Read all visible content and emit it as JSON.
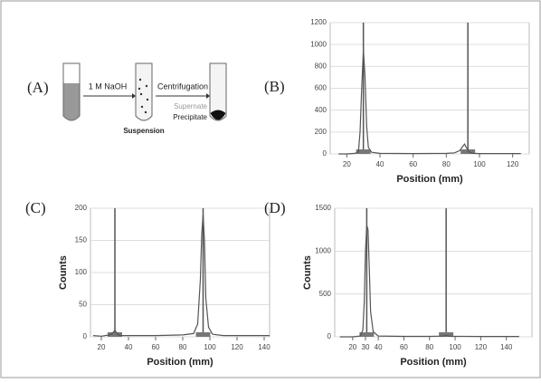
{
  "diagram": {
    "label": "(A)",
    "step1": "1 M NaOH",
    "step2": "Centrifugation",
    "tube2": "Suspension",
    "top_layer": "Supernate",
    "bottom_layer": "Precipitate"
  },
  "chart_data": [
    {
      "type": "line",
      "label": "(B)",
      "xlabel": "Position (mm)",
      "xlim": [
        10,
        130
      ],
      "ylim": [
        0,
        1200
      ],
      "xticks": [
        20,
        40,
        60,
        80,
        100,
        120
      ],
      "yticks": [
        0,
        200,
        400,
        600,
        800,
        1000,
        1200
      ],
      "vlines": [
        30,
        93
      ],
      "series": [
        {
          "color": "#555555",
          "x": [
            15,
            20,
            25,
            27,
            28,
            29,
            30,
            31,
            32,
            33,
            35,
            40,
            60,
            80,
            85,
            88,
            90,
            91,
            92,
            94,
            96,
            100,
            125
          ],
          "values": [
            0,
            0,
            5,
            20,
            200,
            600,
            950,
            700,
            250,
            60,
            15,
            5,
            3,
            5,
            10,
            30,
            70,
            90,
            60,
            15,
            5,
            3,
            3
          ]
        }
      ]
    },
    {
      "type": "line",
      "label": "(C)",
      "xlabel": "Position (mm)",
      "ylabel": "Counts",
      "xlim": [
        12,
        144
      ],
      "ylim": [
        0,
        200
      ],
      "xticks": [
        20,
        40,
        60,
        80,
        100,
        120,
        140
      ],
      "yticks": [
        0,
        50,
        100,
        150,
        200
      ],
      "vlines": [
        30,
        95
      ],
      "series": [
        {
          "color": "#555555",
          "x": [
            14,
            20,
            26,
            28,
            30,
            32,
            34,
            40,
            60,
            80,
            88,
            91,
            93,
            94,
            95,
            96,
            97,
            99,
            102,
            110,
            144
          ],
          "values": [
            2,
            1,
            3,
            5,
            10,
            4,
            2,
            2,
            2,
            3,
            5,
            20,
            90,
            160,
            190,
            150,
            60,
            15,
            4,
            2,
            2
          ]
        }
      ]
    },
    {
      "type": "line",
      "label": "(D)",
      "xlabel": "Position (mm)",
      "ylabel": "Counts",
      "xlim": [
        6,
        160
      ],
      "ylim": [
        0,
        1500
      ],
      "xticks": [
        20,
        30,
        40,
        60,
        80,
        100,
        120,
        140
      ],
      "yticks": [
        0,
        500,
        1000,
        1500
      ],
      "vlines": [
        31,
        93
      ],
      "series": [
        {
          "color": "#555555",
          "x": [
            10,
            20,
            26,
            28,
            29,
            30,
            31,
            32,
            33,
            34,
            36,
            40,
            60,
            80,
            90,
            93,
            96,
            120,
            150
          ],
          "values": [
            0,
            0,
            10,
            80,
            400,
            1000,
            1300,
            1250,
            800,
            300,
            60,
            10,
            5,
            5,
            8,
            15,
            6,
            4,
            4
          ]
        }
      ]
    }
  ]
}
